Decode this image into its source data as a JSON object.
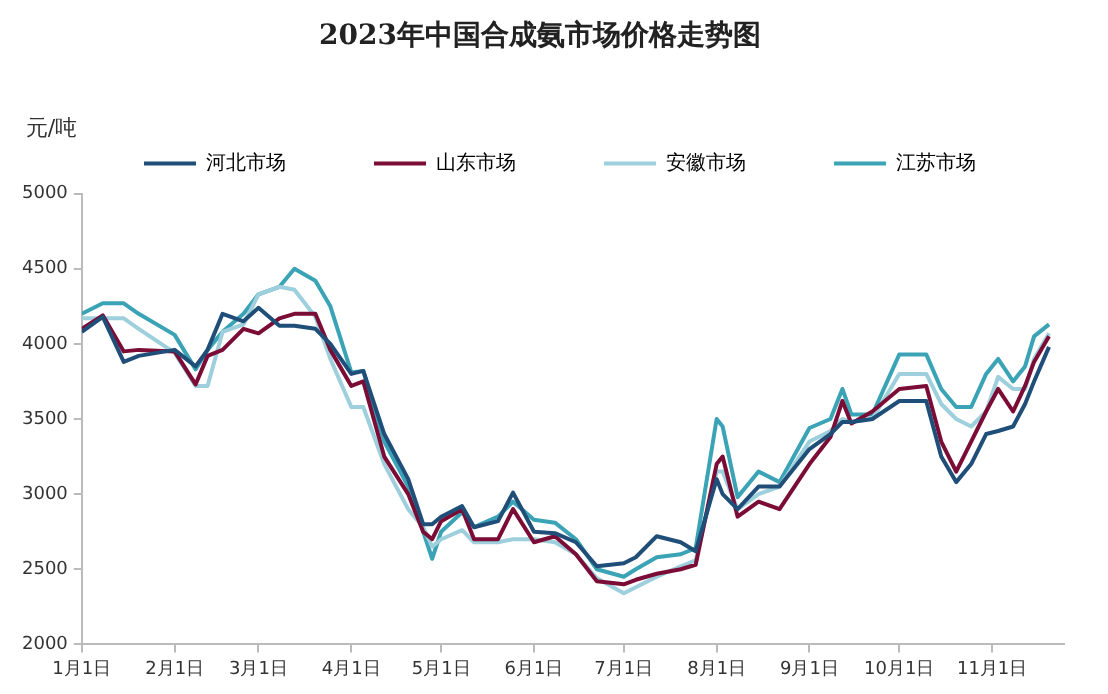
{
  "chart_data": {
    "type": "line",
    "title": "2023年中国合成氨市场价格走势图",
    "ylabel": "元/吨",
    "x": [
      "2023-01-01",
      "2023-01-08",
      "2023-01-15",
      "2023-01-20",
      "2023-02-01",
      "2023-02-08",
      "2023-02-12",
      "2023-02-17",
      "2023-02-24",
      "2023-03-01",
      "2023-03-08",
      "2023-03-13",
      "2023-03-20",
      "2023-03-25",
      "2023-04-01",
      "2023-04-05",
      "2023-04-12",
      "2023-04-20",
      "2023-04-25",
      "2023-04-28",
      "2023-05-01",
      "2023-05-08",
      "2023-05-12",
      "2023-05-20",
      "2023-05-25",
      "2023-06-01",
      "2023-06-08",
      "2023-06-15",
      "2023-06-22",
      "2023-07-01",
      "2023-07-05",
      "2023-07-12",
      "2023-07-20",
      "2023-07-25",
      "2023-08-01",
      "2023-08-03",
      "2023-08-08",
      "2023-08-15",
      "2023-08-22",
      "2023-09-01",
      "2023-09-08",
      "2023-09-12",
      "2023-09-15",
      "2023-09-22",
      "2023-10-01",
      "2023-10-10",
      "2023-10-15",
      "2023-10-20",
      "2023-10-25",
      "2023-10-30",
      "2023-11-03",
      "2023-11-08",
      "2023-11-12",
      "2023-11-15",
      "2023-11-20"
    ],
    "series": [
      {
        "name": "河北市场",
        "color": "#1f4e79",
        "values": [
          4080,
          4180,
          3880,
          3920,
          3960,
          3850,
          3960,
          4200,
          4150,
          4240,
          4120,
          4120,
          4100,
          4000,
          3800,
          3820,
          3400,
          3100,
          2800,
          2800,
          2850,
          2920,
          2780,
          2820,
          3010,
          2750,
          2740,
          2680,
          2520,
          2540,
          2580,
          2720,
          2680,
          2620,
          3100,
          3000,
          2900,
          3050,
          3050,
          3300,
          3400,
          3480,
          3480,
          3500,
          3620,
          3620,
          3250,
          3080,
          3200,
          3400,
          3420,
          3450,
          3600,
          3750,
          3980
        ]
      },
      {
        "name": "山东市场",
        "color": "#7b0c35",
        "values": [
          4100,
          4190,
          3950,
          3960,
          3950,
          3730,
          3920,
          3960,
          4100,
          4070,
          4170,
          4200,
          4200,
          3960,
          3720,
          3750,
          3250,
          3000,
          2750,
          2700,
          2820,
          2900,
          2700,
          2700,
          2900,
          2680,
          2720,
          2600,
          2420,
          2400,
          2430,
          2470,
          2500,
          2530,
          3200,
          3250,
          2850,
          2950,
          2900,
          3200,
          3380,
          3620,
          3470,
          3550,
          3700,
          3720,
          3350,
          3150,
          3350,
          3550,
          3700,
          3550,
          3720,
          3880,
          4050
        ]
      },
      {
        "name": "安徽市场",
        "color": "#9dcfdc",
        "values": [
          4170,
          4170,
          4170,
          4100,
          3940,
          3720,
          3720,
          4080,
          4130,
          4330,
          4380,
          4360,
          4180,
          3900,
          3580,
          3580,
          3200,
          2900,
          2780,
          2650,
          2700,
          2760,
          2680,
          2680,
          2700,
          2700,
          2680,
          2600,
          2440,
          2340,
          2380,
          2450,
          2520,
          2560,
          3150,
          3150,
          2900,
          3000,
          3050,
          3350,
          3420,
          3500,
          3480,
          3500,
          3800,
          3800,
          3600,
          3500,
          3450,
          3550,
          3780,
          3700,
          3700,
          3900,
          4070
        ]
      },
      {
        "name": "江苏市场",
        "color": "#3aa3b5",
        "values": [
          4200,
          4270,
          4270,
          4200,
          4060,
          3830,
          3960,
          4080,
          4200,
          4330,
          4380,
          4500,
          4420,
          4250,
          3810,
          3820,
          3350,
          3050,
          2750,
          2570,
          2750,
          2880,
          2780,
          2850,
          2950,
          2830,
          2810,
          2700,
          2500,
          2450,
          2500,
          2580,
          2600,
          2640,
          3500,
          3450,
          2980,
          3150,
          3080,
          3440,
          3500,
          3700,
          3530,
          3530,
          3930,
          3930,
          3700,
          3580,
          3580,
          3800,
          3900,
          3750,
          3850,
          4050,
          4130
        ]
      }
    ],
    "xlim": [
      "2023-01-01",
      "2023-11-25"
    ],
    "xticks": [
      {
        "value": "2023-01-01",
        "label": "1月1日"
      },
      {
        "value": "2023-02-01",
        "label": "2月1日"
      },
      {
        "value": "2023-03-01",
        "label": "3月1日"
      },
      {
        "value": "2023-04-01",
        "label": "4月1日"
      },
      {
        "value": "2023-05-01",
        "label": "5月1日"
      },
      {
        "value": "2023-06-01",
        "label": "6月1日"
      },
      {
        "value": "2023-07-01",
        "label": "7月1日"
      },
      {
        "value": "2023-08-01",
        "label": "8月1日"
      },
      {
        "value": "2023-09-01",
        "label": "9月1日"
      },
      {
        "value": "2023-10-01",
        "label": "10月1日"
      },
      {
        "value": "2023-11-01",
        "label": "11月1日"
      }
    ],
    "ylim": [
      2000,
      5000
    ],
    "yticks": [
      2000,
      2500,
      3000,
      3500,
      4000,
      4500,
      5000
    ],
    "grid": false,
    "legend": "top",
    "marker": "none",
    "line_style": "solid"
  }
}
